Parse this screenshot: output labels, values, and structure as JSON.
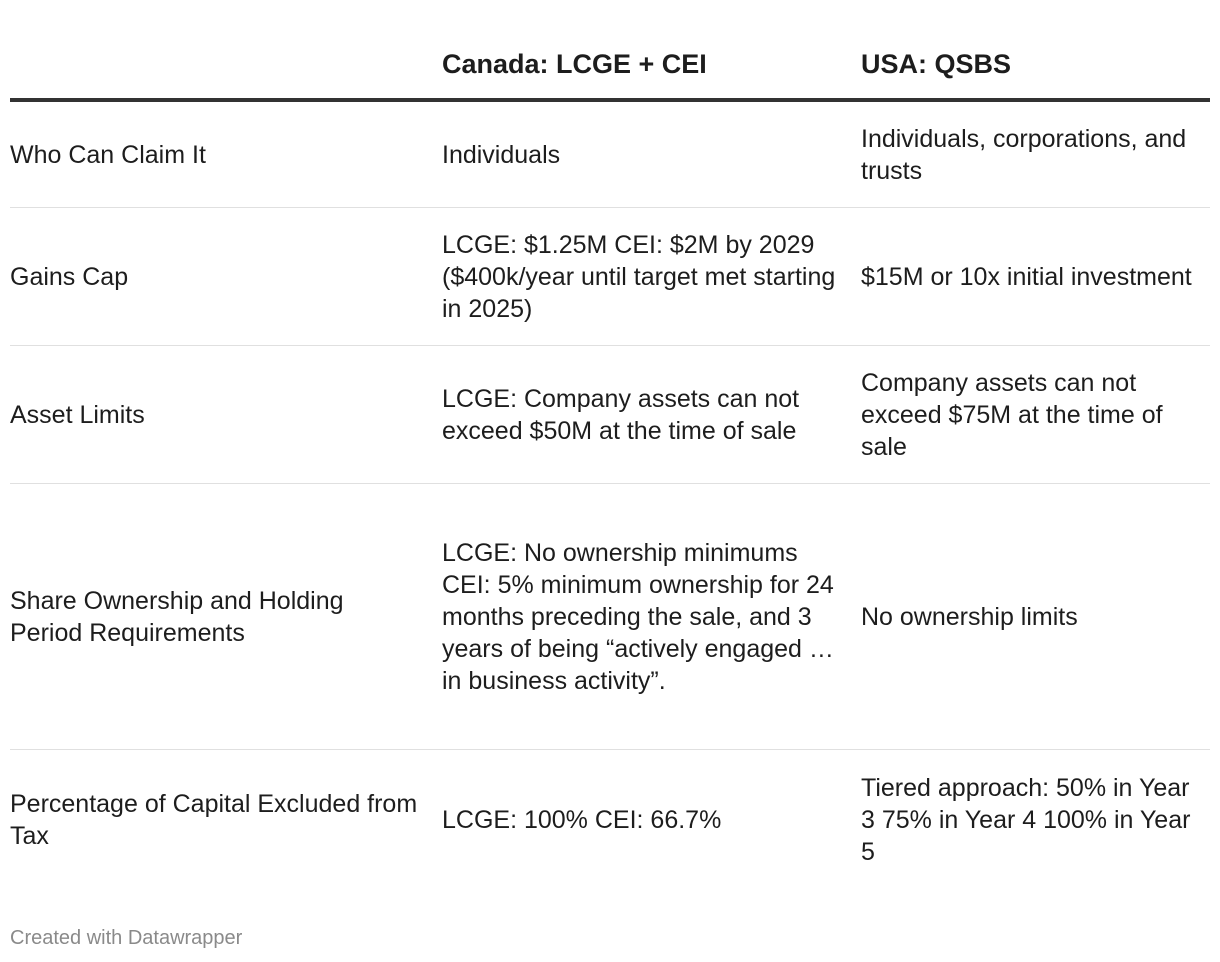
{
  "chart_data": {
    "type": "table",
    "columns": [
      "",
      "Canada: LCGE + CEI",
      "USA: QSBS"
    ],
    "rows": [
      {
        "label": "Who Can Claim It",
        "canada": "Individuals",
        "usa": "Individuals, corporations, and trusts"
      },
      {
        "label": "Gains Cap",
        "canada": "LCGE: $1.25M CEI: $2M by 2029 ($400k/year until target met starting in 2025)",
        "usa": "$15M or 10x initial investment"
      },
      {
        "label": "Asset Limits",
        "canada": "LCGE: Company assets can not exceed $50M at the time of sale",
        "usa": "Company assets can not exceed $75M at the time of sale"
      },
      {
        "label": "Share Ownership and Holding Period Requirements",
        "canada": "LCGE: No ownership minimums CEI: 5% minimum ownership for 24 months preceding the sale, and 3 years of being “actively engaged … in business activity”.",
        "usa": "No ownership limits"
      },
      {
        "label": "Percentage of Capital Excluded from Tax",
        "canada": "LCGE: 100% CEI: 66.7%",
        "usa": "Tiered approach: 50% in Year 3 75% in Year 4 100% in Year 5"
      }
    ]
  },
  "footer": {
    "credit": "Created with Datawrapper"
  },
  "colors": {
    "text": "#1d1d1d",
    "header_rule": "#333333",
    "row_divider": "#e0e0e0",
    "footer_text": "#8a8a8a"
  }
}
